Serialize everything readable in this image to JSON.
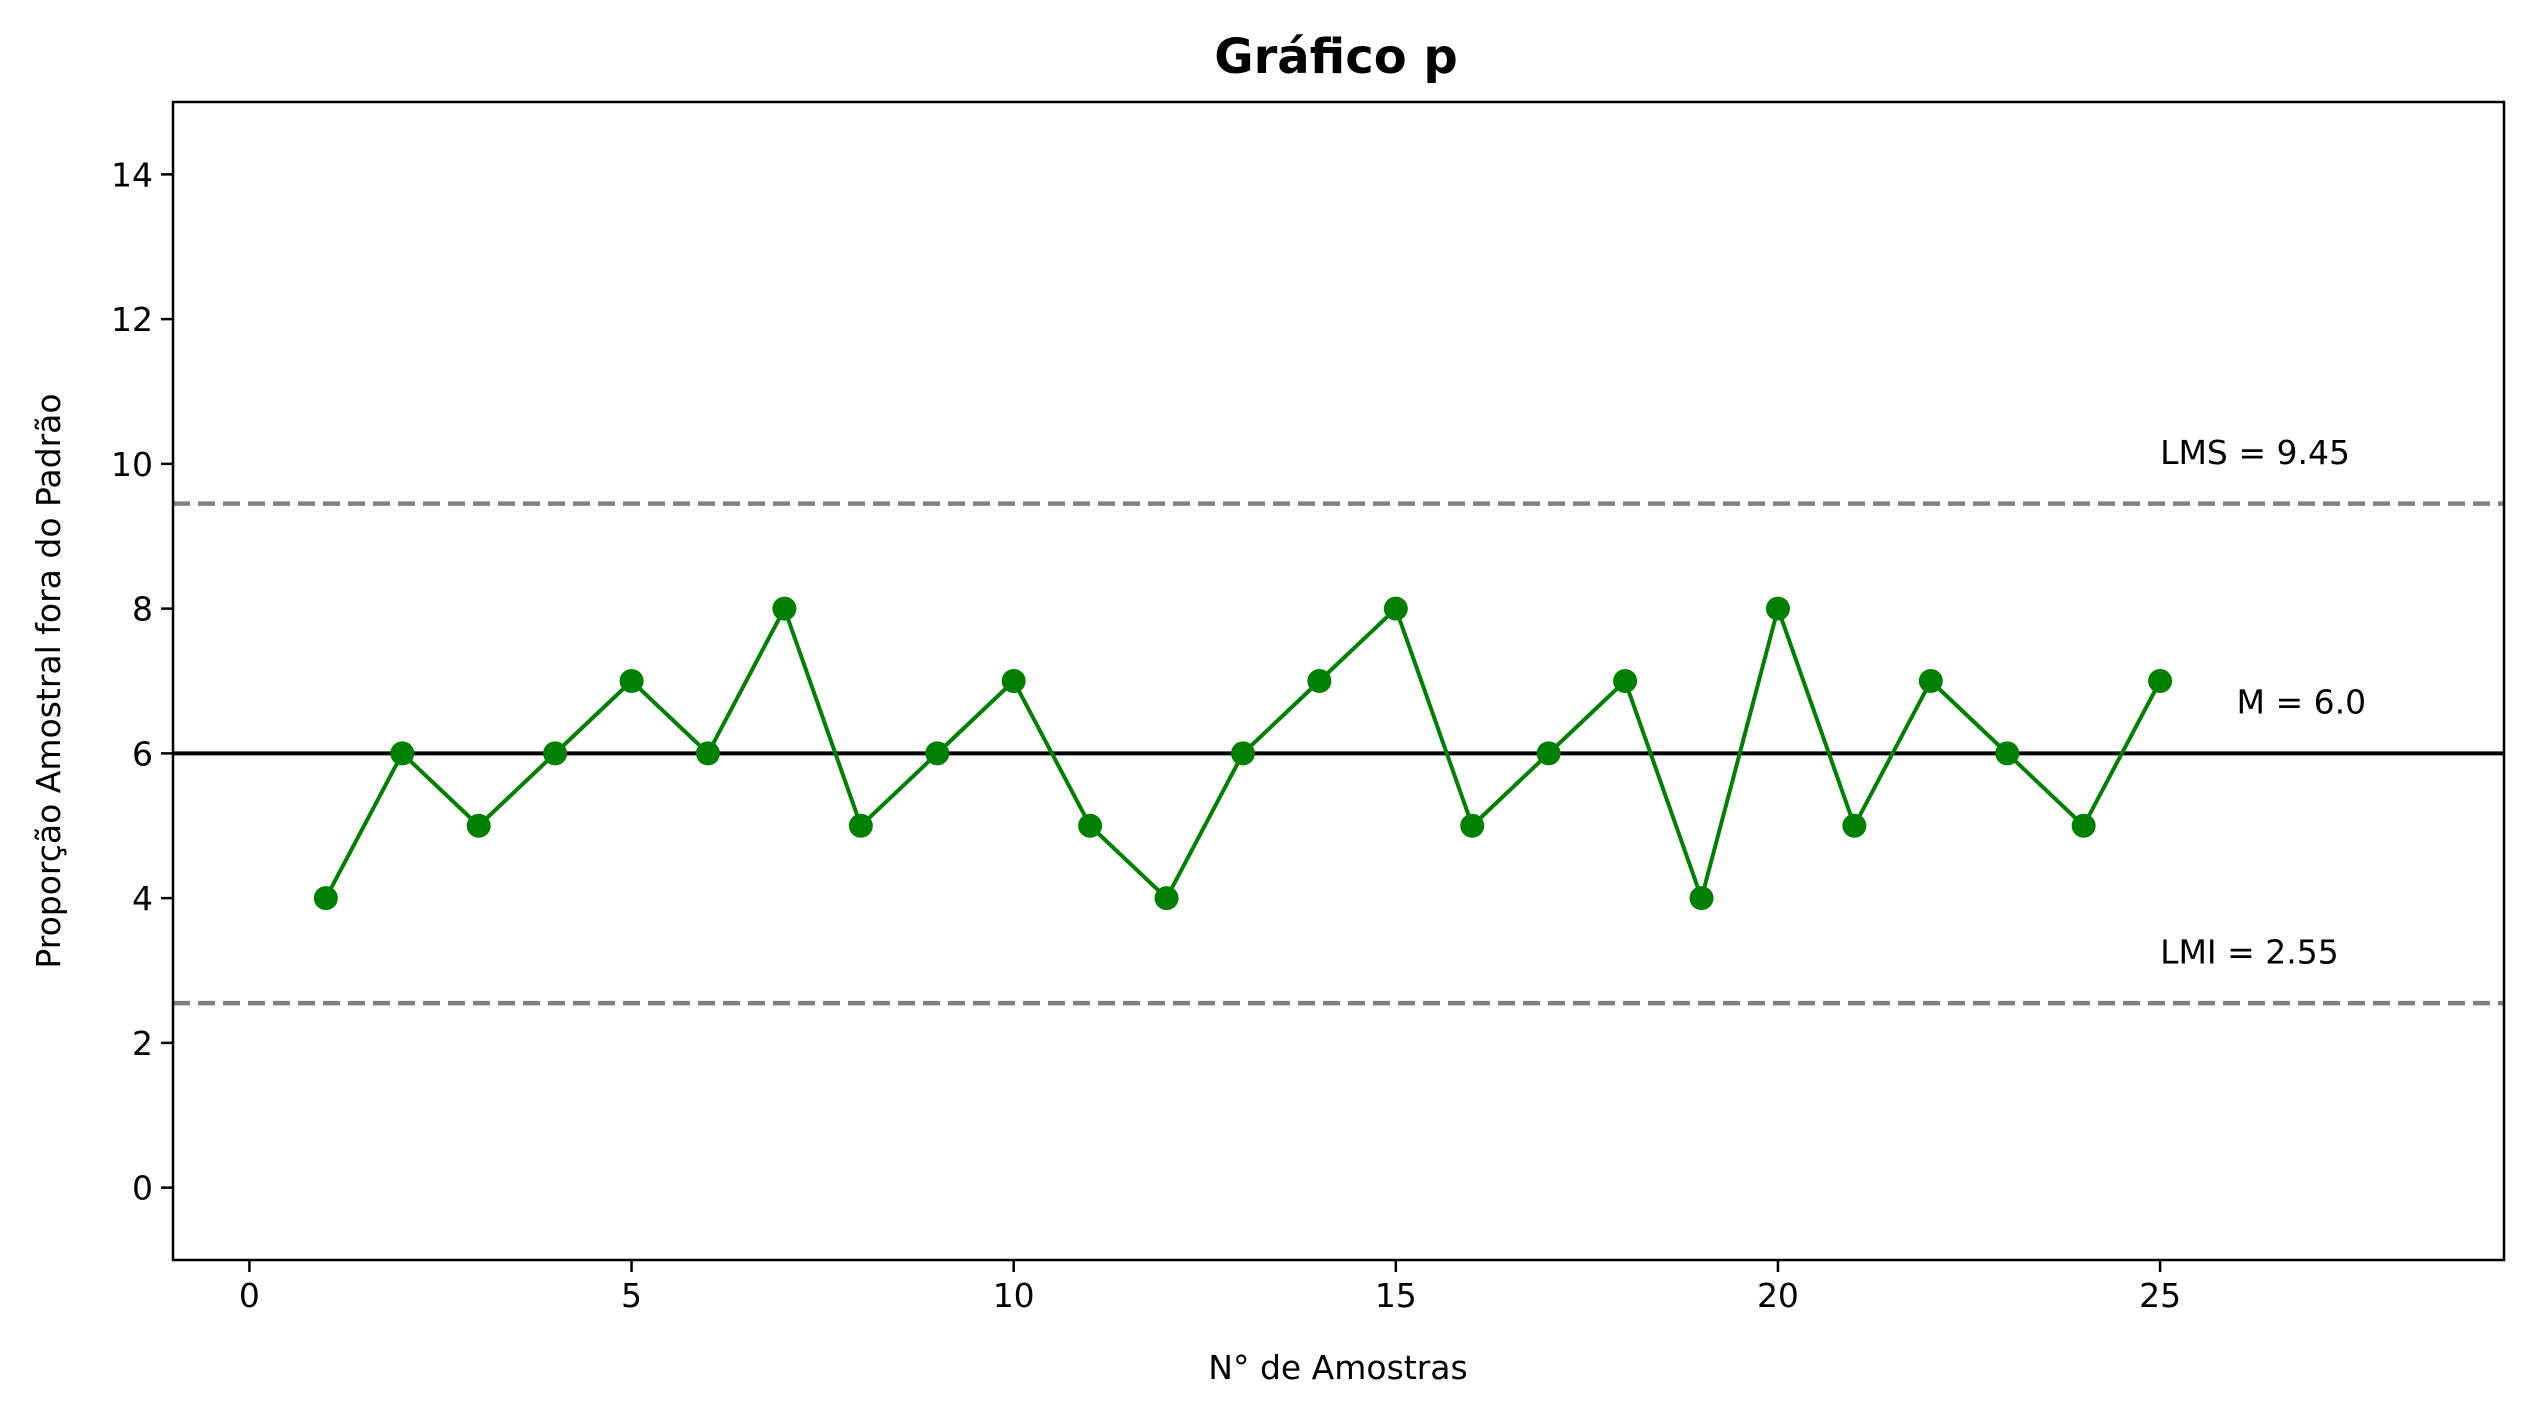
{
  "chart_data": {
    "type": "line",
    "title": "Gráfico p",
    "xlabel": "N° de Amostras",
    "ylabel": "Proporção Amostral fora do Padrão",
    "xlim": [
      -1,
      29.5
    ],
    "ylim": [
      -1,
      15
    ],
    "xticks": [
      0,
      5,
      10,
      15,
      20,
      25
    ],
    "yticks": [
      0,
      2,
      4,
      6,
      8,
      10,
      12,
      14
    ],
    "grid": false,
    "series": [
      {
        "color": "#008000",
        "marker": "circle",
        "x": [
          1,
          2,
          3,
          4,
          5,
          6,
          7,
          8,
          9,
          10,
          11,
          12,
          13,
          14,
          15,
          16,
          17,
          18,
          19,
          20,
          21,
          22,
          23,
          24,
          25
        ],
        "y": [
          4,
          6,
          5,
          6,
          7,
          6,
          8,
          5,
          6,
          7,
          5,
          4,
          6,
          7,
          8,
          5,
          6,
          7,
          4,
          8,
          5,
          7,
          6,
          5,
          7
        ]
      }
    ],
    "reference_lines": [
      {
        "id": "lms",
        "y": 9.45,
        "style": "dashed",
        "color": "#808080",
        "label": "LMS = 9.45",
        "label_x": 25,
        "label_y": 10.0
      },
      {
        "id": "m",
        "y": 6.0,
        "style": "solid",
        "color": "#000000",
        "label": "M = 6.0",
        "label_x": 26,
        "label_y": 6.55
      },
      {
        "id": "lmi",
        "y": 2.55,
        "style": "dashed",
        "color": "#808080",
        "label": "LMI = 2.55",
        "label_x": 25,
        "label_y": 3.1
      }
    ]
  }
}
